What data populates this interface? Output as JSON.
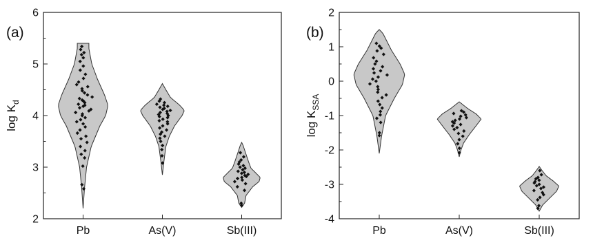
{
  "chart_data": [
    {
      "type": "violin",
      "panel_label": "(a)",
      "ylabel": "log K",
      "ylabel_sub": "d",
      "ylim": [
        2,
        6
      ],
      "yticks": [
        "2",
        "3",
        "4",
        "5",
        "6"
      ],
      "categories": [
        "Pb",
        "As(V)",
        "Sb(III)"
      ],
      "fill_color": "#c8c8c8",
      "point_color": "#111111",
      "grid": false,
      "violins": [
        {
          "name": "Pb",
          "min": 2.2,
          "max": 5.4,
          "profile": [
            [
              2.2,
              0.0
            ],
            [
              2.6,
              0.05
            ],
            [
              3.0,
              0.12
            ],
            [
              3.4,
              0.28
            ],
            [
              3.8,
              0.58
            ],
            [
              4.0,
              0.78
            ],
            [
              4.2,
              0.86
            ],
            [
              4.4,
              0.74
            ],
            [
              4.7,
              0.5
            ],
            [
              5.0,
              0.3
            ],
            [
              5.3,
              0.2
            ],
            [
              5.4,
              0.2
            ]
          ],
          "points": [
            2.58,
            2.66,
            3.02,
            3.18,
            3.25,
            3.32,
            3.4,
            3.48,
            3.55,
            3.6,
            3.66,
            3.72,
            3.78,
            3.84,
            3.88,
            3.92,
            3.96,
            4.0,
            4.03,
            4.06,
            4.09,
            4.12,
            4.15,
            4.18,
            4.2,
            4.22,
            4.25,
            4.28,
            4.3,
            4.33,
            4.36,
            4.4,
            4.44,
            4.48,
            4.52,
            4.56,
            4.6,
            4.65,
            4.72,
            4.8,
            4.88,
            4.96,
            5.05,
            5.12,
            5.18,
            5.22,
            5.28,
            5.34
          ]
        },
        {
          "name": "As(V)",
          "min": 2.85,
          "max": 4.62,
          "profile": [
            [
              2.85,
              0.0
            ],
            [
              3.1,
              0.05
            ],
            [
              3.4,
              0.12
            ],
            [
              3.6,
              0.24
            ],
            [
              3.8,
              0.42
            ],
            [
              4.0,
              0.68
            ],
            [
              4.1,
              0.76
            ],
            [
              4.2,
              0.6
            ],
            [
              4.35,
              0.28
            ],
            [
              4.5,
              0.12
            ],
            [
              4.62,
              0.0
            ]
          ],
          "points": [
            3.08,
            3.22,
            3.34,
            3.42,
            3.5,
            3.56,
            3.6,
            3.64,
            3.68,
            3.72,
            3.76,
            3.8,
            3.84,
            3.88,
            3.9,
            3.93,
            3.96,
            3.98,
            4.0,
            4.02,
            4.04,
            4.06,
            4.08,
            4.1,
            4.12,
            4.14,
            4.16,
            4.18,
            4.2,
            4.22,
            4.25,
            4.28,
            4.32
          ]
        },
        {
          "name": "Sb(III)",
          "min": 2.22,
          "max": 3.48,
          "profile": [
            [
              2.22,
              0.0
            ],
            [
              2.3,
              0.1
            ],
            [
              2.45,
              0.15
            ],
            [
              2.62,
              0.38
            ],
            [
              2.72,
              0.6
            ],
            [
              2.8,
              0.64
            ],
            [
              2.88,
              0.5
            ],
            [
              2.98,
              0.32
            ],
            [
              3.1,
              0.24
            ],
            [
              3.2,
              0.18
            ],
            [
              3.3,
              0.12
            ],
            [
              3.42,
              0.05
            ],
            [
              3.48,
              0.0
            ]
          ],
          "points": [
            2.26,
            2.3,
            2.55,
            2.62,
            2.68,
            2.72,
            2.75,
            2.78,
            2.8,
            2.82,
            2.84,
            2.86,
            2.88,
            2.9,
            2.92,
            2.95,
            2.98,
            3.0,
            3.03,
            3.06,
            3.1,
            3.14,
            3.2,
            3.28
          ]
        }
      ]
    },
    {
      "type": "violin",
      "panel_label": "(b)",
      "ylabel": "log K",
      "ylabel_sub": "SSA",
      "ylim": [
        -4,
        2
      ],
      "yticks": [
        "-4",
        "-3",
        "-2",
        "-1",
        "0",
        "1",
        "2"
      ],
      "categories": [
        "Pb",
        "As(V)",
        "Sb(III)"
      ],
      "fill_color": "#c8c8c8",
      "point_color": "#111111",
      "grid": false,
      "violins": [
        {
          "name": "Pb",
          "min": -2.1,
          "max": 1.5,
          "profile": [
            [
              -2.1,
              0.0
            ],
            [
              -1.6,
              0.08
            ],
            [
              -1.0,
              0.22
            ],
            [
              -0.5,
              0.52
            ],
            [
              -0.1,
              0.8
            ],
            [
              0.2,
              0.88
            ],
            [
              0.5,
              0.72
            ],
            [
              0.9,
              0.42
            ],
            [
              1.2,
              0.24
            ],
            [
              1.4,
              0.12
            ],
            [
              1.5,
              0.0
            ]
          ],
          "points": [
            -1.58,
            -1.5,
            -1.2,
            -1.08,
            -0.98,
            -0.88,
            -0.78,
            -0.68,
            -0.58,
            -0.48,
            -0.4,
            -0.32,
            -0.24,
            -0.16,
            -0.08,
            0.0,
            0.06,
            0.12,
            0.18,
            0.24,
            0.3,
            0.36,
            0.42,
            0.5,
            0.58,
            0.68,
            0.78,
            0.88,
            0.96,
            1.02,
            1.1
          ]
        },
        {
          "name": "As(V)",
          "min": -2.2,
          "max": -0.6,
          "profile": [
            [
              -2.2,
              0.0
            ],
            [
              -2.0,
              0.06
            ],
            [
              -1.8,
              0.15
            ],
            [
              -1.55,
              0.35
            ],
            [
              -1.3,
              0.58
            ],
            [
              -1.1,
              0.76
            ],
            [
              -0.95,
              0.58
            ],
            [
              -0.8,
              0.3
            ],
            [
              -0.68,
              0.12
            ],
            [
              -0.6,
              0.0
            ]
          ],
          "points": [
            -2.08,
            -1.95,
            -1.82,
            -1.7,
            -1.6,
            -1.52,
            -1.45,
            -1.4,
            -1.35,
            -1.3,
            -1.26,
            -1.22,
            -1.18,
            -1.14,
            -1.1,
            -1.06,
            -1.02,
            -0.98,
            -0.94,
            -0.9,
            -0.86
          ]
        },
        {
          "name": "Sb(III)",
          "min": -3.78,
          "max": -2.48,
          "profile": [
            [
              -3.78,
              0.0
            ],
            [
              -3.6,
              0.12
            ],
            [
              -3.4,
              0.36
            ],
            [
              -3.2,
              0.6
            ],
            [
              -3.05,
              0.68
            ],
            [
              -2.9,
              0.48
            ],
            [
              -2.75,
              0.24
            ],
            [
              -2.6,
              0.1
            ],
            [
              -2.48,
              0.0
            ]
          ],
          "points": [
            -3.7,
            -3.62,
            -3.45,
            -3.38,
            -3.3,
            -3.24,
            -3.18,
            -3.12,
            -3.08,
            -3.04,
            -3.0,
            -2.96,
            -2.92,
            -2.88,
            -2.84,
            -2.8,
            -2.72,
            -2.6
          ]
        }
      ]
    }
  ]
}
